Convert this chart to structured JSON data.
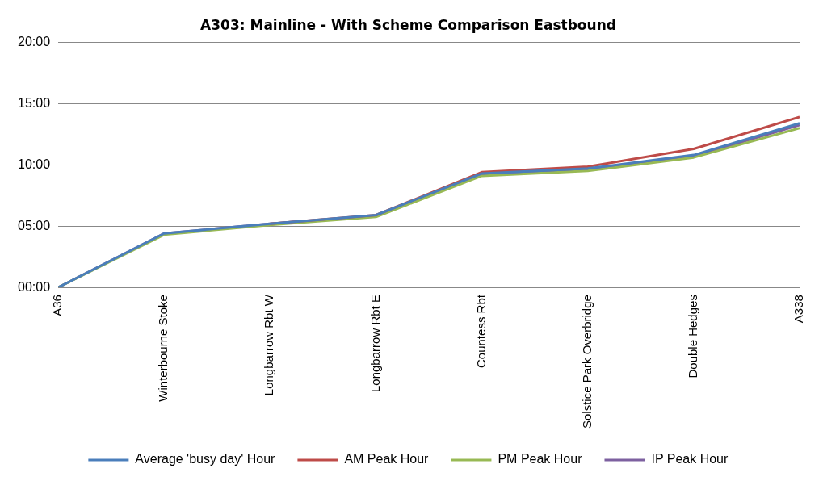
{
  "chart_data": {
    "type": "line",
    "title": "A303: Mainline - With Scheme Comparison Eastbound",
    "categories": [
      "A36",
      "Winterbourne Stoke",
      "Longbarrow Rbt W",
      "Longbarrow Rbt E",
      "Countess Rbt",
      "Solstice Park Overbridge",
      "Double Hedges",
      "A338"
    ],
    "ylim": [
      0,
      20
    ],
    "yticks": [
      {
        "value": 0,
        "label": "00:00"
      },
      {
        "value": 5,
        "label": "05:00"
      },
      {
        "value": 10,
        "label": "10:00"
      },
      {
        "value": 15,
        "label": "15:00"
      },
      {
        "value": 20,
        "label": "20:00"
      }
    ],
    "series": [
      {
        "name": "Average 'busy day' Hour",
        "color": "#4a7ebb",
        "values": [
          0,
          4.4,
          5.2,
          5.9,
          9.3,
          9.7,
          10.8,
          13.4
        ]
      },
      {
        "name": "AM Peak Hour",
        "color": "#be4b48",
        "values": [
          null,
          null,
          5.2,
          5.9,
          9.4,
          9.85,
          11.3,
          13.9
        ]
      },
      {
        "name": "PM Peak Hour",
        "color": "#98b954",
        "values": [
          0,
          4.3,
          5.1,
          5.75,
          9.1,
          9.5,
          10.6,
          13.0
        ]
      },
      {
        "name": "IP Peak Hour",
        "color": "#7d60a0",
        "values": [
          0,
          4.4,
          5.2,
          5.85,
          9.25,
          9.65,
          10.7,
          13.25
        ]
      }
    ],
    "grid": "y",
    "legend": "bottom",
    "marker": "none",
    "line_style": "solid"
  }
}
